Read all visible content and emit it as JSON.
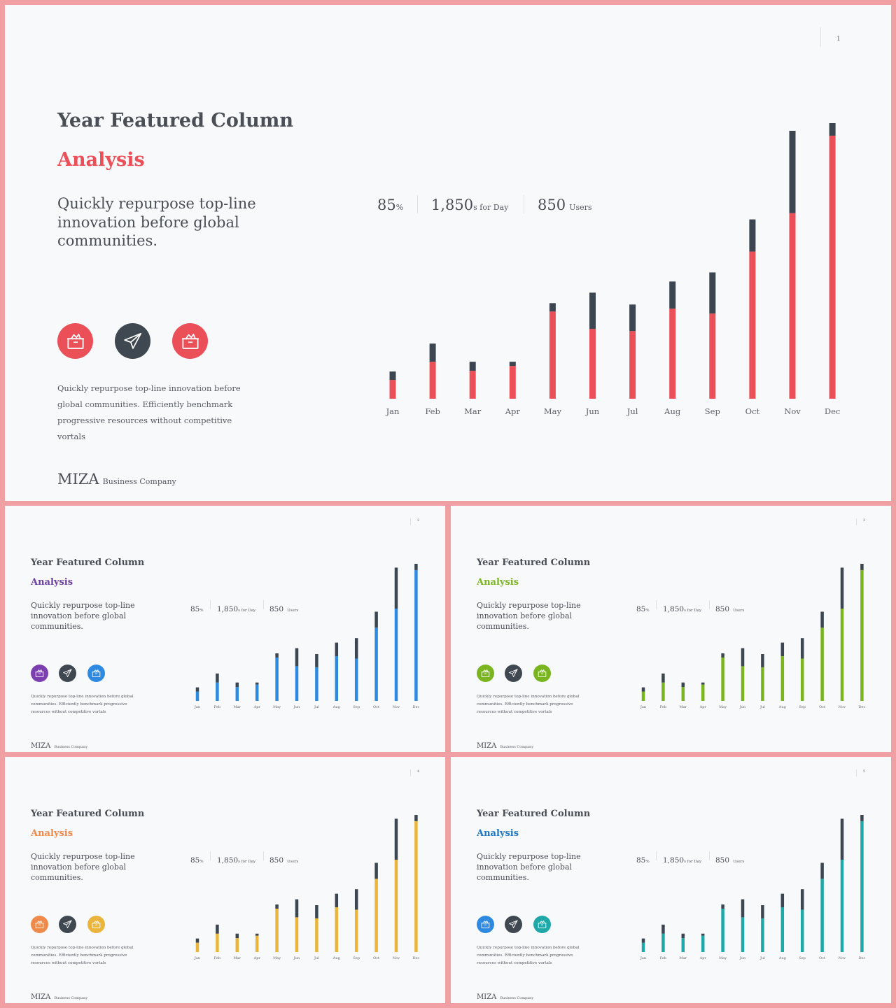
{
  "common": {
    "title": "Year Featured Column",
    "subtitle": "Analysis",
    "lead": "Quickly repurpose top-line innovation before global communities.",
    "body": "Quickly repurpose top-line innovation before global communities. Efficiently benchmark progressive resources without competitive vortals",
    "stats": [
      {
        "value": "85",
        "unit": "%"
      },
      {
        "value": "1,850",
        "unit": "s for Day"
      },
      {
        "value": "850",
        "unit": "Users"
      }
    ],
    "brand": {
      "name": "MIZA",
      "tag": "Business Company"
    }
  },
  "slides": [
    {
      "page": "1",
      "accent": "#eb4f58",
      "icons": [
        {
          "name": "box-icon",
          "color": "#eb4f58"
        },
        {
          "name": "paper-plane-icon",
          "color": "#3f4850"
        },
        {
          "name": "box-icon",
          "color": "#eb4f58"
        }
      ]
    },
    {
      "page": "2",
      "accent": "#2d8ae0",
      "subtitle_color": "#6b3fa0",
      "icons": [
        {
          "name": "box-icon",
          "color": "#7b3fb0"
        },
        {
          "name": "paper-plane-icon",
          "color": "#3f4850"
        },
        {
          "name": "box-icon",
          "color": "#2d8ae0"
        }
      ]
    },
    {
      "page": "3",
      "accent": "#7ab41f",
      "subtitle_color": "#7ab41f",
      "icons": [
        {
          "name": "box-icon",
          "color": "#7ab41f"
        },
        {
          "name": "paper-plane-icon",
          "color": "#3f4850"
        },
        {
          "name": "box-icon",
          "color": "#7ab41f"
        }
      ]
    },
    {
      "page": "4",
      "accent": "#eab53a",
      "subtitle_color": "#f08a4b",
      "icons": [
        {
          "name": "box-icon",
          "color": "#f08a4b"
        },
        {
          "name": "paper-plane-icon",
          "color": "#3f4850"
        },
        {
          "name": "box-icon",
          "color": "#eab53a"
        }
      ]
    },
    {
      "page": "5",
      "accent": "#1ea8a8",
      "subtitle_color": "#1f77c3",
      "icons": [
        {
          "name": "box-icon",
          "color": "#2d8ae0"
        },
        {
          "name": "paper-plane-icon",
          "color": "#3f4850"
        },
        {
          "name": "box-icon",
          "color": "#1ea8a8"
        }
      ]
    }
  ],
  "chart_data": {
    "type": "bar",
    "stacked": true,
    "categories": [
      "Jan",
      "Feb",
      "Mar",
      "Apr",
      "May",
      "Jun",
      "Jul",
      "Aug",
      "Sep",
      "Oct",
      "Nov",
      "Dec"
    ],
    "series": [
      {
        "values": [
          27,
          53,
          40,
          47,
          125,
          100,
          97,
          129,
          122,
          211,
          266,
          377
        ]
      },
      {
        "values": [
          12,
          26,
          13,
          6,
          12,
          52,
          38,
          39,
          59,
          46,
          118,
          18
        ]
      }
    ],
    "ylim": [
      0,
      395
    ],
    "colors": {
      "dark": "#3c4650"
    }
  }
}
